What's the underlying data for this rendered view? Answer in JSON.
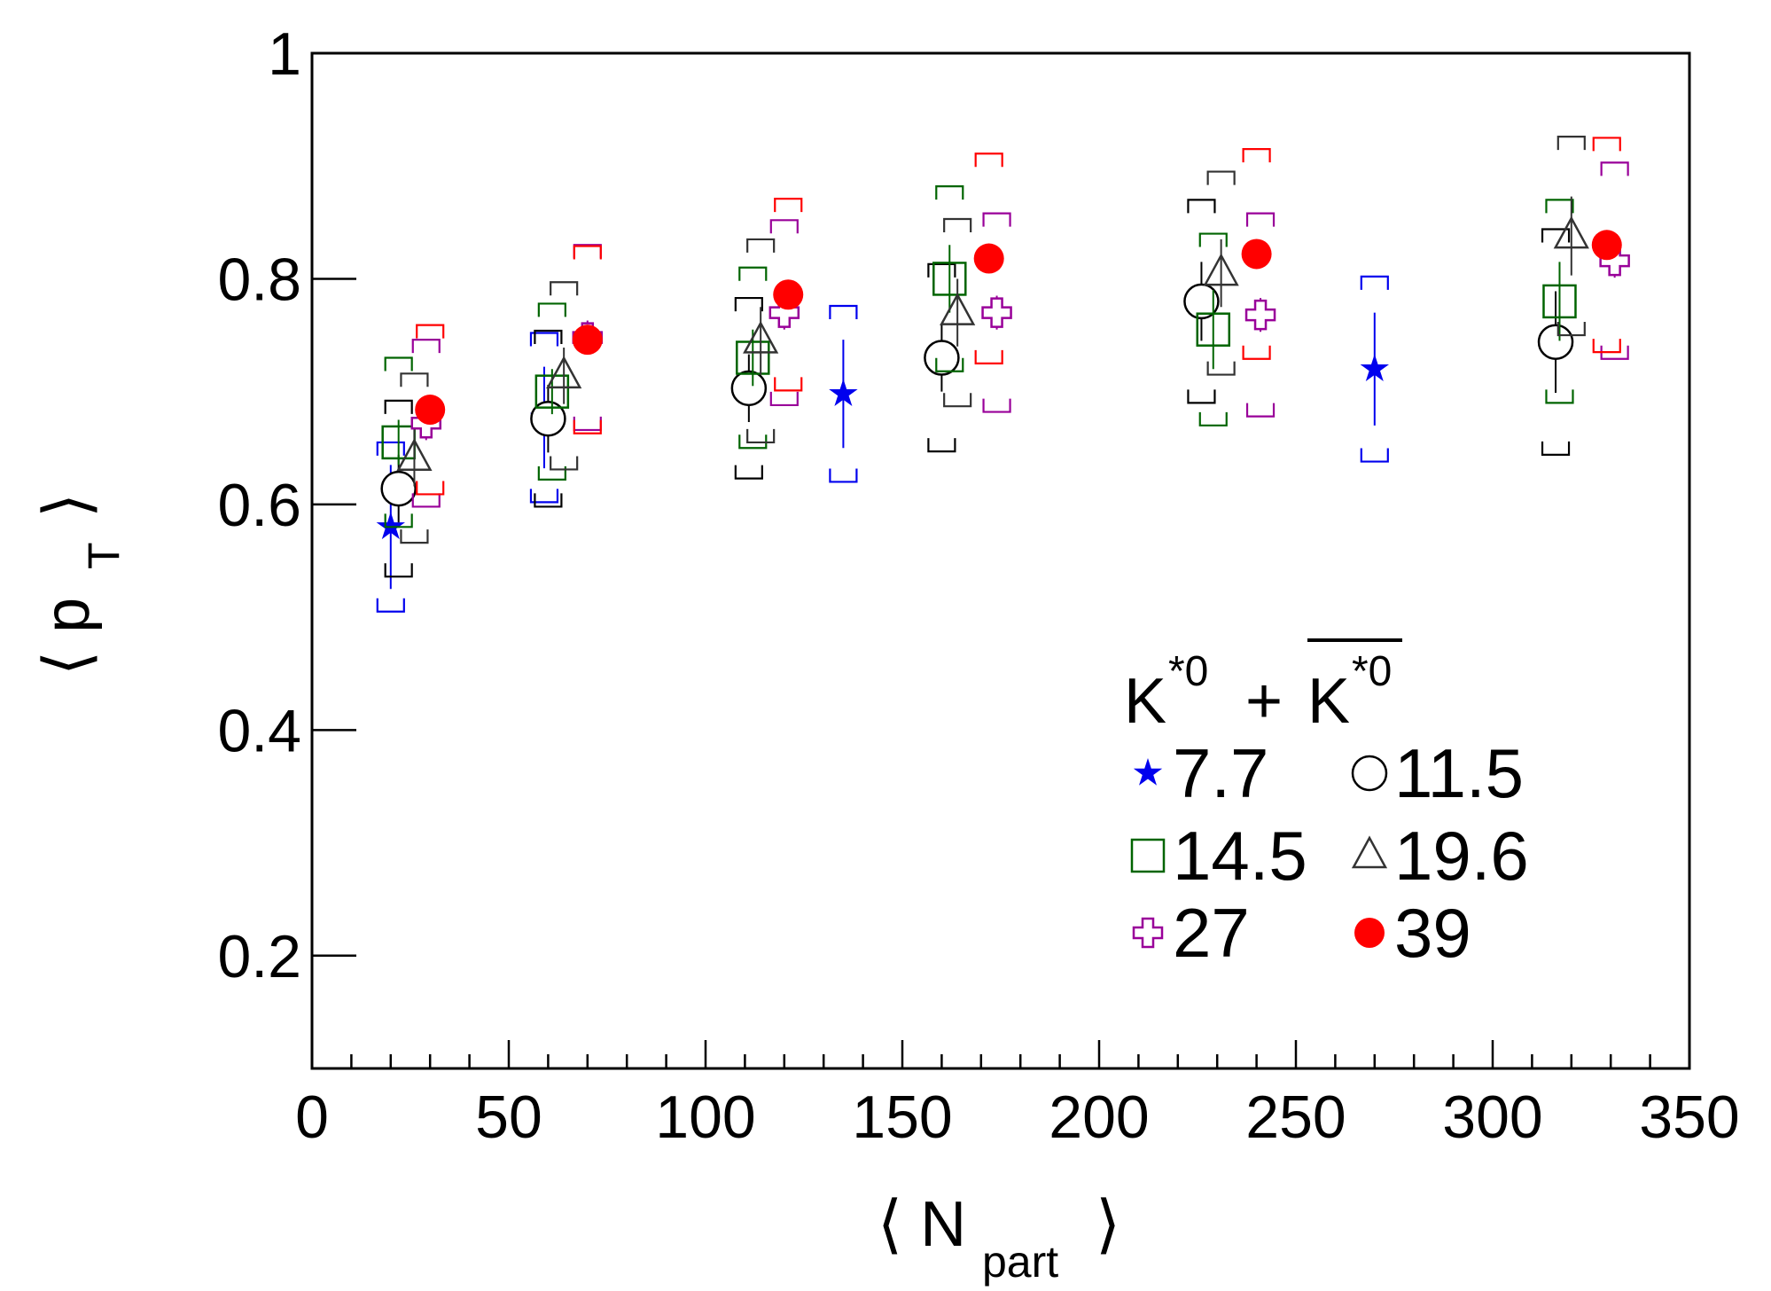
{
  "chart_data": {
    "type": "scatter",
    "xlabel": "⟨ N",
    "xlabel_sub": "part",
    "xlabel_close": "⟩",
    "ylabel": "⟨ p",
    "ylabel_sub": "T",
    "ylabel_close": "⟩",
    "xlim": [
      0,
      350
    ],
    "ylim": [
      0.1,
      1.0
    ],
    "xticks": [
      0,
      50,
      100,
      150,
      200,
      250,
      300,
      350
    ],
    "yticks": [
      0.2,
      0.4,
      0.6,
      0.8,
      1
    ],
    "xtick_labels": [
      "0",
      "50",
      "100",
      "150",
      "200",
      "250",
      "300",
      "350"
    ],
    "ytick_labels": [
      "0.2",
      "0.4",
      "0.6",
      "0.8",
      "1"
    ],
    "grid": false,
    "legend_position": "bottom-right",
    "legend_title": {
      "particle": "K",
      "sup": "*0",
      "plus": "+"
    },
    "series": [
      {
        "name": "7.7",
        "marker": "star",
        "color": "#0000ee",
        "points": [
          {
            "x": 20,
            "y": 0.58,
            "err": 0.055,
            "sys": 0.075
          },
          {
            "x": 59,
            "y": 0.677,
            "err": 0.045,
            "sys": 0.075
          },
          {
            "x": 135,
            "y": 0.698,
            "err": 0.048,
            "sys": 0.078
          },
          {
            "x": 270,
            "y": 0.72,
            "err": 0.05,
            "sys": 0.082
          }
        ]
      },
      {
        "name": "11.5",
        "marker": "open-circle",
        "color": "#000000",
        "points": [
          {
            "x": 22,
            "y": 0.614,
            "err": 0.03,
            "sys": 0.078
          },
          {
            "x": 60,
            "y": 0.676,
            "err": 0.03,
            "sys": 0.078
          },
          {
            "x": 111,
            "y": 0.703,
            "err": 0.03,
            "sys": 0.08
          },
          {
            "x": 160,
            "y": 0.73,
            "err": 0.03,
            "sys": 0.083
          },
          {
            "x": 226,
            "y": 0.78,
            "err": 0.035,
            "sys": 0.09
          },
          {
            "x": 316,
            "y": 0.744,
            "err": 0.045,
            "sys": 0.1
          }
        ]
      },
      {
        "name": "14.5",
        "marker": "open-square",
        "color": "#006400",
        "points": [
          {
            "x": 22,
            "y": 0.655,
            "err": 0.02,
            "sys": 0.075
          },
          {
            "x": 61,
            "y": 0.7,
            "err": 0.02,
            "sys": 0.078
          },
          {
            "x": 112,
            "y": 0.73,
            "err": 0.025,
            "sys": 0.08
          },
          {
            "x": 162,
            "y": 0.8,
            "err": 0.03,
            "sys": 0.082
          },
          {
            "x": 229,
            "y": 0.755,
            "err": 0.035,
            "sys": 0.085
          },
          {
            "x": 317,
            "y": 0.78,
            "err": 0.035,
            "sys": 0.09
          }
        ]
      },
      {
        "name": "19.6",
        "marker": "open-triangle",
        "color": "#333333",
        "points": [
          {
            "x": 26,
            "y": 0.641,
            "err": 0.025,
            "sys": 0.075
          },
          {
            "x": 64,
            "y": 0.714,
            "err": 0.025,
            "sys": 0.083
          },
          {
            "x": 114,
            "y": 0.745,
            "err": 0.03,
            "sys": 0.09
          },
          {
            "x": 164,
            "y": 0.77,
            "err": 0.03,
            "sys": 0.083
          },
          {
            "x": 231,
            "y": 0.805,
            "err": 0.03,
            "sys": 0.09
          },
          {
            "x": 320,
            "y": 0.838,
            "err": 0.035,
            "sys": 0.088
          }
        ]
      },
      {
        "name": "27",
        "marker": "open-cross",
        "color": "#990099",
        "points": [
          {
            "x": 29,
            "y": 0.672,
            "err": 0.015,
            "sys": 0.074
          },
          {
            "x": 70,
            "y": 0.748,
            "err": 0.015,
            "sys": 0.082
          },
          {
            "x": 120,
            "y": 0.77,
            "err": 0.015,
            "sys": 0.082
          },
          {
            "x": 174,
            "y": 0.77,
            "err": 0.015,
            "sys": 0.088
          },
          {
            "x": 241,
            "y": 0.768,
            "err": 0.015,
            "sys": 0.09
          },
          {
            "x": 331,
            "y": 0.816,
            "err": 0.015,
            "sys": 0.087
          }
        ]
      },
      {
        "name": "39",
        "marker": "filled-circle",
        "color": "#ff0000",
        "points": [
          {
            "x": 30,
            "y": 0.684,
            "err": 0.008,
            "sys": 0.075
          },
          {
            "x": 70,
            "y": 0.746,
            "err": 0.008,
            "sys": 0.083
          },
          {
            "x": 121,
            "y": 0.786,
            "err": 0.008,
            "sys": 0.085
          },
          {
            "x": 172,
            "y": 0.818,
            "err": 0.008,
            "sys": 0.093
          },
          {
            "x": 240,
            "y": 0.822,
            "err": 0.008,
            "sys": 0.093
          },
          {
            "x": 329,
            "y": 0.83,
            "err": 0.008,
            "sys": 0.095
          }
        ]
      }
    ]
  }
}
